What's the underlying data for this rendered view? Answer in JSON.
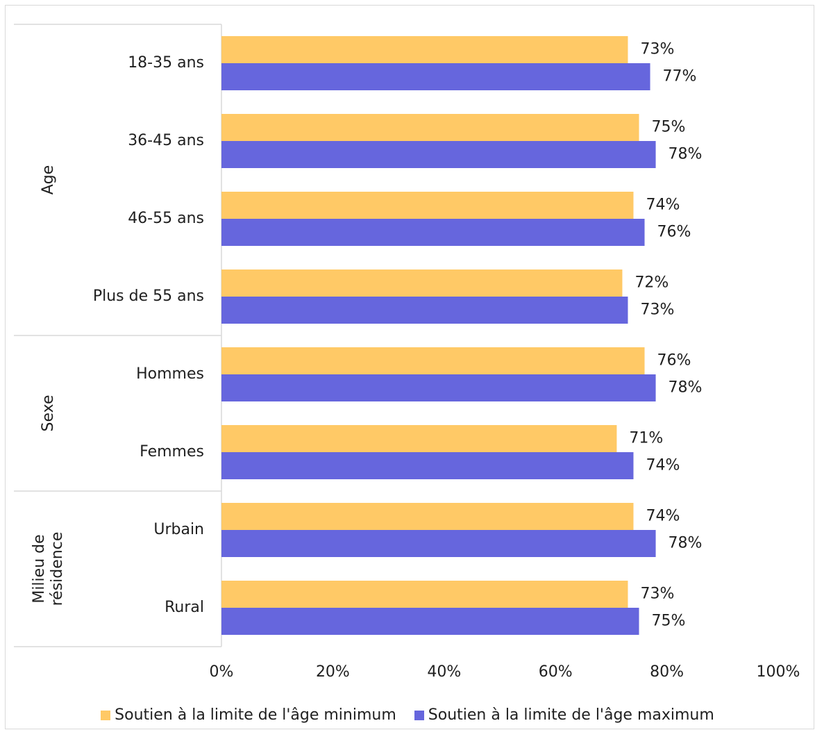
{
  "chart_data": {
    "type": "bar",
    "orientation": "horizontal",
    "groups": [
      {
        "label": "Age",
        "categories": [
          "18-35 ans",
          "36-45 ans",
          "46-55 ans",
          "Plus de 55 ans"
        ]
      },
      {
        "label": "Sexe",
        "categories": [
          "Hommes",
          "Femmes"
        ]
      },
      {
        "label": "Milieu de résidence",
        "label_lines": [
          "Milieu de",
          "résidence"
        ],
        "categories": [
          "Urbain",
          "Rural"
        ]
      }
    ],
    "categories": [
      "18-35 ans",
      "36-45 ans",
      "46-55 ans",
      "Plus de 55 ans",
      "Hommes",
      "Femmes",
      "Urbain",
      "Rural"
    ],
    "series": [
      {
        "name": "Soutien à la limite de l'âge minimum",
        "color": "#ffc966",
        "values": [
          73,
          75,
          74,
          72,
          76,
          71,
          74,
          73
        ],
        "labels": [
          "73%",
          "75%",
          "74%",
          "72%",
          "76%",
          "71%",
          "74%",
          "73%"
        ]
      },
      {
        "name": "Soutien à la limite de l'âge maximum",
        "color": "#6666dd",
        "values": [
          77,
          78,
          76,
          73,
          78,
          74,
          78,
          75
        ],
        "labels": [
          "77%",
          "78%",
          "76%",
          "73%",
          "78%",
          "74%",
          "78%",
          "75%"
        ]
      }
    ],
    "x_ticks": [
      "0%",
      "20%",
      "40%",
      "60%",
      "80%",
      "100%"
    ],
    "xlim": [
      0,
      100
    ],
    "unit": "%",
    "grid": false,
    "legend_position": "bottom"
  }
}
